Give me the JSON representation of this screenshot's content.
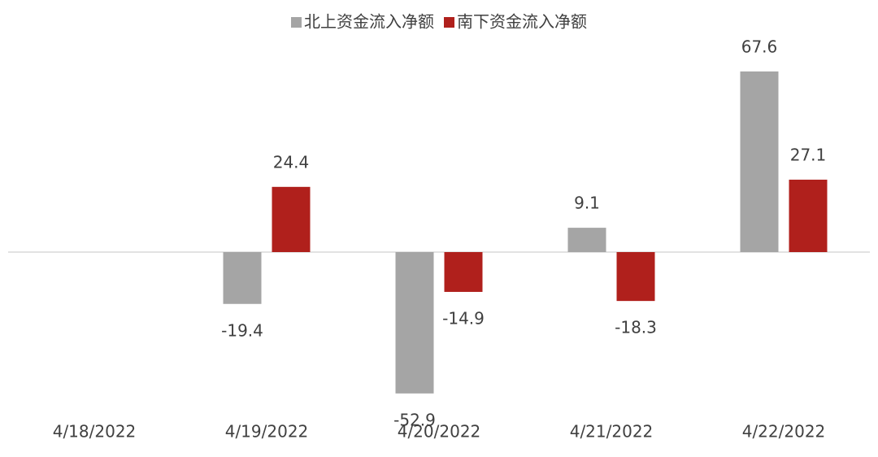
{
  "chart_data": {
    "type": "bar",
    "categories": [
      "4/18/2022",
      "4/19/2022",
      "4/20/2022",
      "4/21/2022",
      "4/22/2022"
    ],
    "series": [
      {
        "name": "北上资金流入净额",
        "color": "#a5a5a5",
        "values": [
          null,
          -19.4,
          -52.9,
          9.1,
          67.6
        ]
      },
      {
        "name": "南下资金流入净额",
        "color": "#b0201c",
        "values": [
          null,
          24.4,
          -14.9,
          -18.3,
          27.1
        ]
      }
    ],
    "legend": "top"
  }
}
